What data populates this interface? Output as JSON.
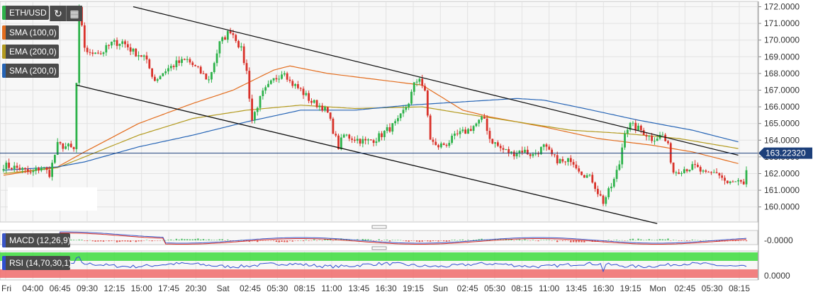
{
  "chart_data": {
    "type": "candlestick",
    "symbol": "ETH/USD",
    "colors": {
      "up": "#2db24a",
      "down": "#d9322a",
      "sma100": "#e36d1e",
      "ema200": "#b39a1e",
      "sma200": "#2463b5",
      "macd_line": "#3a55c8",
      "macd_signal": "#d9322a",
      "rsi_line": "#2f4fd0",
      "rsi_upper_zone": "#3ddc3d",
      "rsi_lower_zone": "#f06b6b"
    },
    "price_axis": {
      "ticks": [
        "172.0000",
        "171.0000",
        "170.0000",
        "169.0000",
        "168.0000",
        "167.0000",
        "166.0000",
        "165.0000",
        "164.0000",
        "163.0000",
        "162.0000",
        "161.0000",
        "160.0000"
      ],
      "ylim": [
        159.1,
        172.2
      ]
    },
    "current_price": {
      "label": "163.22320",
      "value": 163.2232
    },
    "time_axis": [
      "Fri",
      "04:00",
      "06:45",
      "09:30",
      "12:15",
      "15:00",
      "17:45",
      "20:30",
      "Sat",
      "02:45",
      "05:30",
      "08:15",
      "11:00",
      "13:45",
      "16:30",
      "19:15",
      "Sun",
      "02:45",
      "05:30",
      "08:15",
      "11:00",
      "13:45",
      "16:30",
      "19:15",
      "Mon",
      "02:45",
      "05:30",
      "08:15"
    ],
    "close_anchors": [
      [
        0,
        162.5
      ],
      [
        6,
        162.3
      ],
      [
        10,
        162.0
      ],
      [
        14,
        162.4
      ],
      [
        17,
        162.0
      ],
      [
        20,
        163.7
      ],
      [
        24,
        163.6
      ],
      [
        26,
        163.4
      ],
      [
        27,
        167.4
      ],
      [
        28,
        171.8
      ],
      [
        30,
        169.6
      ],
      [
        32,
        169.1
      ],
      [
        34,
        169.4
      ],
      [
        36,
        169.2
      ],
      [
        40,
        169.8
      ],
      [
        44,
        169.9
      ],
      [
        48,
        169.3
      ],
      [
        52,
        169.0
      ],
      [
        56,
        167.6
      ],
      [
        60,
        168.2
      ],
      [
        64,
        168.6
      ],
      [
        68,
        168.8
      ],
      [
        72,
        168.2
      ],
      [
        76,
        167.6
      ],
      [
        80,
        169.8
      ],
      [
        84,
        170.6
      ],
      [
        86,
        170.1
      ],
      [
        88,
        169.4
      ],
      [
        90,
        168.1
      ],
      [
        92,
        165.2
      ],
      [
        94,
        166.1
      ],
      [
        96,
        166.8
      ],
      [
        100,
        167.6
      ],
      [
        104,
        168.2
      ],
      [
        106,
        167.5
      ],
      [
        110,
        167.0
      ],
      [
        114,
        166.3
      ],
      [
        118,
        166.0
      ],
      [
        120,
        165.6
      ],
      [
        122,
        164.6
      ],
      [
        124,
        163.6
      ],
      [
        126,
        164.3
      ],
      [
        130,
        164.1
      ],
      [
        134,
        163.9
      ],
      [
        138,
        164.1
      ],
      [
        142,
        164.6
      ],
      [
        146,
        165.1
      ],
      [
        150,
        166.3
      ],
      [
        152,
        167.3
      ],
      [
        154,
        167.8
      ],
      [
        156,
        166.8
      ],
      [
        158,
        164.1
      ],
      [
        160,
        163.6
      ],
      [
        164,
        163.8
      ],
      [
        168,
        164.3
      ],
      [
        172,
        164.6
      ],
      [
        176,
        165.1
      ],
      [
        178,
        165.3
      ],
      [
        180,
        164.1
      ],
      [
        184,
        163.5
      ],
      [
        188,
        163.2
      ],
      [
        192,
        163.4
      ],
      [
        196,
        163.1
      ],
      [
        200,
        163.6
      ],
      [
        204,
        162.9
      ],
      [
        208,
        162.6
      ],
      [
        210,
        162.9
      ],
      [
        214,
        162.1
      ],
      [
        218,
        161.6
      ],
      [
        220,
        160.9
      ],
      [
        222,
        160.3
      ],
      [
        224,
        160.9
      ],
      [
        226,
        161.6
      ],
      [
        228,
        162.6
      ],
      [
        230,
        164.6
      ],
      [
        232,
        164.9
      ],
      [
        236,
        164.6
      ],
      [
        240,
        164.1
      ],
      [
        244,
        164.3
      ],
      [
        246,
        163.6
      ],
      [
        248,
        162.1
      ],
      [
        252,
        162.3
      ],
      [
        256,
        162.4
      ],
      [
        260,
        161.9
      ],
      [
        264,
        162.1
      ],
      [
        268,
        161.4
      ],
      [
        272,
        161.5
      ],
      [
        274,
        161.2
      ],
      [
        275,
        162.2
      ]
    ],
    "sma100_anchors": [
      [
        0,
        161.9
      ],
      [
        20,
        162.4
      ],
      [
        30,
        163.3
      ],
      [
        50,
        165.0
      ],
      [
        70,
        166.2
      ],
      [
        85,
        167.0
      ],
      [
        100,
        168.2
      ],
      [
        106,
        168.45
      ],
      [
        120,
        168.0
      ],
      [
        140,
        167.6
      ],
      [
        155,
        167.3
      ],
      [
        170,
        165.8
      ],
      [
        180,
        165.4
      ],
      [
        200,
        164.8
      ],
      [
        220,
        164.1
      ],
      [
        240,
        163.7
      ],
      [
        255,
        163.3
      ],
      [
        272,
        162.6
      ]
    ],
    "ema200_anchors": [
      [
        0,
        162.0
      ],
      [
        20,
        162.35
      ],
      [
        30,
        163.0
      ],
      [
        50,
        164.3
      ],
      [
        70,
        165.3
      ],
      [
        90,
        165.8
      ],
      [
        110,
        166.1
      ],
      [
        130,
        165.9
      ],
      [
        155,
        166.0
      ],
      [
        170,
        165.6
      ],
      [
        190,
        165.1
      ],
      [
        210,
        164.6
      ],
      [
        230,
        164.4
      ],
      [
        250,
        164.1
      ],
      [
        272,
        163.5
      ]
    ],
    "sma200_anchors": [
      [
        0,
        162.2
      ],
      [
        20,
        162.4
      ],
      [
        30,
        162.7
      ],
      [
        50,
        163.6
      ],
      [
        70,
        164.3
      ],
      [
        90,
        165.1
      ],
      [
        110,
        165.8
      ],
      [
        130,
        165.8
      ],
      [
        150,
        166.1
      ],
      [
        170,
        166.3
      ],
      [
        190,
        166.5
      ],
      [
        200,
        166.4
      ],
      [
        215,
        165.9
      ],
      [
        235,
        165.2
      ],
      [
        255,
        164.6
      ],
      [
        272,
        163.9
      ]
    ],
    "channel": {
      "upper": [
        [
          48,
          172.0
        ],
        [
          272,
          163.1
        ]
      ],
      "lower": [
        [
          27,
          167.3
        ],
        [
          242,
          159.0
        ]
      ]
    },
    "indicators": {
      "sma100": "SMA (100,0)",
      "ema200": "EMA (200,0)",
      "sma200": "SMA (200,0)",
      "macd": "MACD (12,26,9)",
      "rsi": "RSI (14,70,30,1)"
    },
    "macd_axis_label": "-0.0000",
    "rsi_axis_label": "0.0000"
  }
}
